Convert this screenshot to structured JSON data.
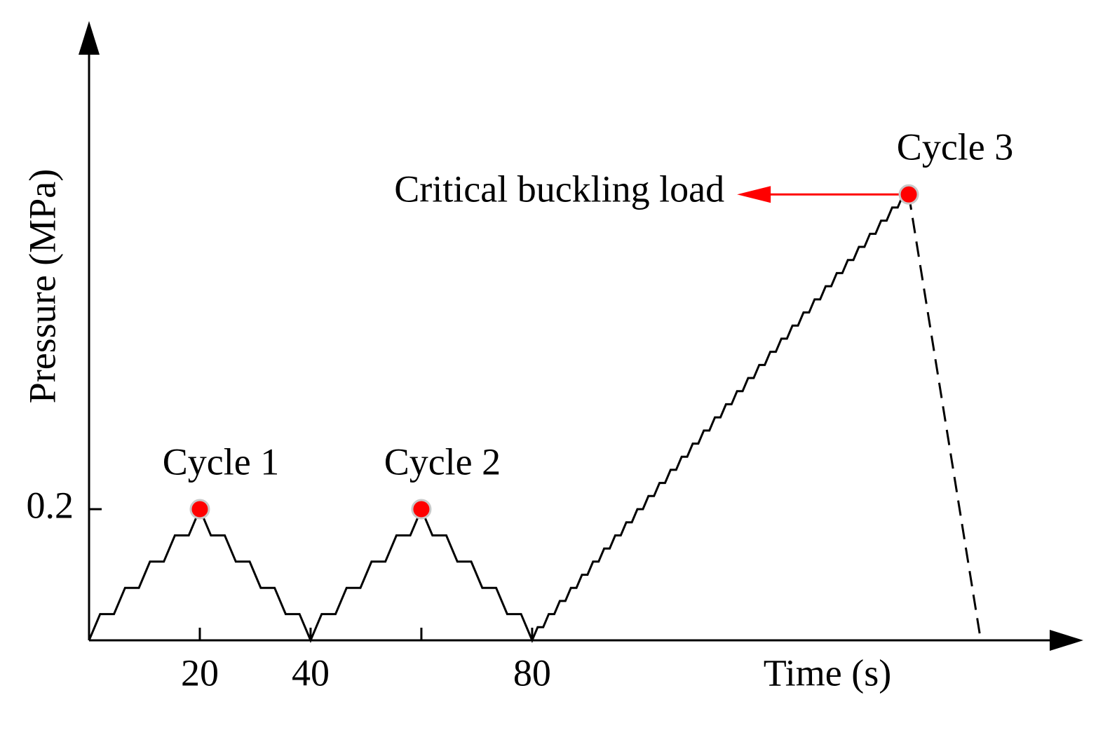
{
  "chart_data": {
    "type": "line",
    "xlabel": "Time (s)",
    "ylabel": "Pressure (MPa)",
    "xlim": [
      0,
      178
    ],
    "ylim": [
      0,
      0.93
    ],
    "xticks": [
      20,
      40,
      {
        "value": 60,
        "label": null
      },
      80
    ],
    "yticks": [
      0.2
    ],
    "series": [
      {
        "color": "#000000",
        "dash": false,
        "x": [
          0,
          2,
          4.5,
          6.5,
          9,
          11,
          13.5,
          15.5,
          18,
          20,
          22,
          24.5,
          26.5,
          29,
          31,
          33.5,
          35.5,
          38,
          40,
          42,
          44.5,
          46.5,
          49,
          51,
          53.5,
          55.5,
          58,
          60,
          62,
          64.5,
          66.5,
          69,
          71,
          73.5,
          75.5,
          78,
          80,
          81,
          82,
          83,
          84,
          85,
          86,
          87,
          88,
          89,
          90,
          91,
          92,
          93,
          94,
          95,
          96,
          97,
          98,
          99,
          100,
          101,
          102,
          103,
          104,
          105,
          106,
          107,
          108,
          109,
          110,
          111,
          112,
          113,
          114,
          115,
          116,
          117,
          118,
          119,
          120,
          121,
          122,
          123,
          124,
          125,
          126,
          127,
          128,
          129,
          130,
          131,
          132,
          133,
          134,
          135,
          136,
          137,
          138,
          139,
          140,
          141,
          142,
          143,
          144,
          145,
          146,
          147,
          148
        ],
        "values": [
          0,
          0.04,
          0.04,
          0.08,
          0.08,
          0.12,
          0.12,
          0.16,
          0.16,
          0.2,
          0.16,
          0.16,
          0.12,
          0.12,
          0.08,
          0.08,
          0.04,
          0.04,
          0,
          0.04,
          0.04,
          0.08,
          0.08,
          0.12,
          0.12,
          0.16,
          0.16,
          0.2,
          0.16,
          0.16,
          0.12,
          0.12,
          0.08,
          0.08,
          0.04,
          0.04,
          0,
          0.02,
          0.02,
          0.04,
          0.04,
          0.06,
          0.06,
          0.08,
          0.08,
          0.1,
          0.1,
          0.12,
          0.12,
          0.14,
          0.14,
          0.16,
          0.16,
          0.18,
          0.18,
          0.2,
          0.2,
          0.22,
          0.22,
          0.24,
          0.24,
          0.26,
          0.26,
          0.28,
          0.28,
          0.3,
          0.3,
          0.32,
          0.32,
          0.34,
          0.34,
          0.36,
          0.36,
          0.38,
          0.38,
          0.4,
          0.4,
          0.42,
          0.42,
          0.44,
          0.44,
          0.46,
          0.46,
          0.48,
          0.48,
          0.5,
          0.5,
          0.52,
          0.52,
          0.54,
          0.54,
          0.56,
          0.56,
          0.58,
          0.58,
          0.6,
          0.6,
          0.62,
          0.62,
          0.64,
          0.64,
          0.66,
          0.66,
          0.68,
          0.68
        ]
      },
      {
        "color": "#000000",
        "dash": true,
        "x": [
          148,
          161
        ],
        "values": [
          0.68,
          0
        ]
      }
    ],
    "points": {
      "color": "#ff0000",
      "x": [
        20,
        60,
        148
      ],
      "values": [
        0.2,
        0.2,
        0.68
      ],
      "labels": [
        "Cycle 1",
        "Cycle 2",
        "Cycle 3"
      ]
    },
    "annotation": {
      "text": "Critical buckling load",
      "color": "#ff0000",
      "x": 117,
      "y": 0.68
    }
  }
}
